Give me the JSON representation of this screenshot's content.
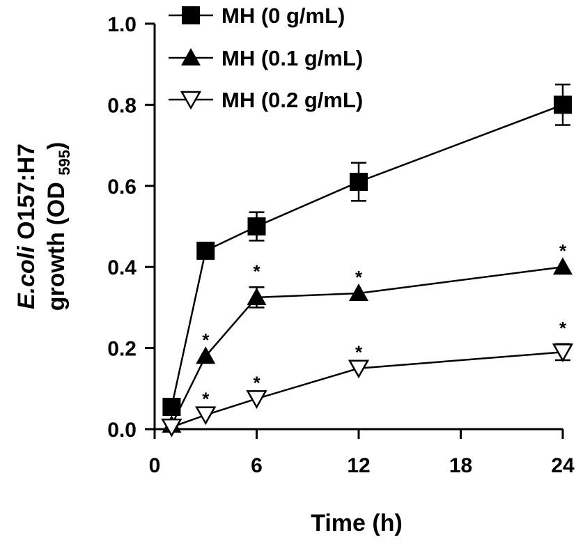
{
  "chart_data": {
    "type": "line",
    "xlabel": "Time (h)",
    "ylabel": {
      "line1_italic": "E.coli",
      "line1_rest": " O157:H7",
      "line2_main": "growth (OD ",
      "line2_sub": "595",
      "line2_end": ")"
    },
    "xlim": [
      0,
      24
    ],
    "ylim": [
      0,
      1.0
    ],
    "x_ticks": [
      "0",
      "6",
      "12",
      "18",
      "24"
    ],
    "y_ticks": [
      "0.0",
      "0.2",
      "0.4",
      "0.6",
      "0.8",
      "1.0"
    ],
    "significance_marker": "*",
    "grid": false,
    "legend_position": "top-center",
    "series": [
      {
        "name": "MH (0 g/mL)",
        "marker": "filled-square",
        "x": [
          1,
          3,
          6,
          12,
          24
        ],
        "y": [
          0.055,
          0.44,
          0.5,
          0.61,
          0.8
        ],
        "err": [
          0.0,
          0.0,
          0.035,
          0.047,
          0.05
        ],
        "significant": [
          false,
          false,
          false,
          false,
          false
        ]
      },
      {
        "name": "MH (0.1 g/mL)",
        "marker": "filled-triangle-up",
        "x": [
          1,
          3,
          6,
          12,
          24
        ],
        "y": [
          0.01,
          0.18,
          0.325,
          0.335,
          0.4
        ],
        "err": [
          0.0,
          0.0,
          0.025,
          0.0,
          0.0
        ],
        "significant": [
          false,
          true,
          true,
          true,
          true
        ]
      },
      {
        "name": "MH (0.2 g/mL)",
        "marker": "open-triangle-down",
        "x": [
          1,
          3,
          6,
          12,
          24
        ],
        "y": [
          0.005,
          0.035,
          0.075,
          0.15,
          0.19
        ],
        "err": [
          0.0,
          0.0,
          0.0,
          0.0,
          0.02
        ],
        "significant": [
          false,
          true,
          true,
          true,
          true
        ]
      }
    ]
  }
}
